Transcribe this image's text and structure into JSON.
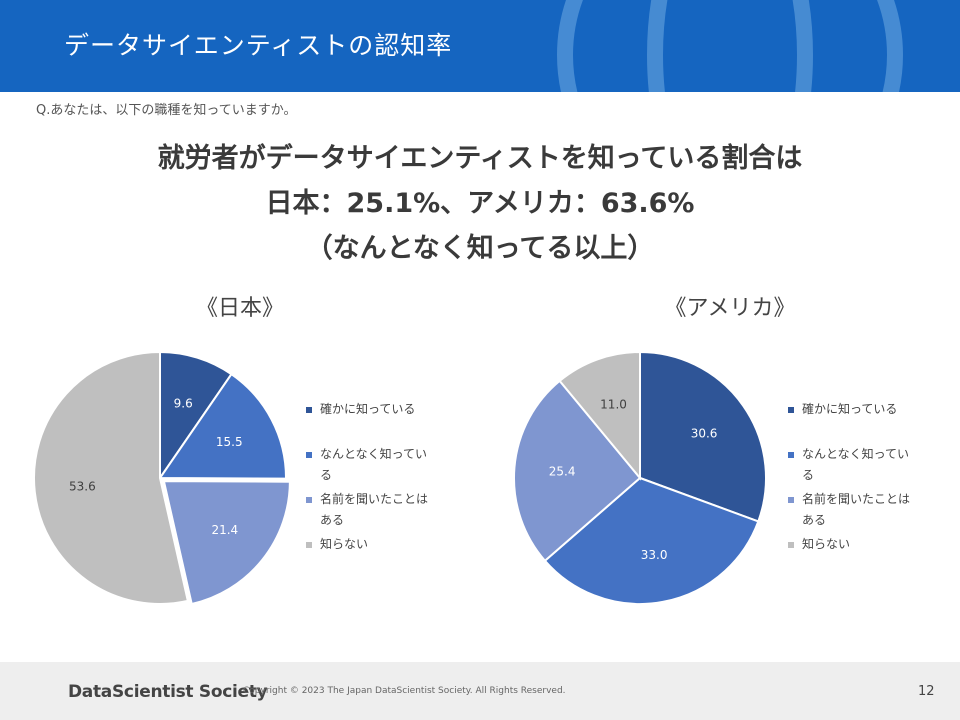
{
  "header": {
    "title": "データサイエンティストの認知率"
  },
  "question": "Q.あなたは、以下の職種を知っていますか。",
  "headline": {
    "line1": "就労者がデータサイエンティストを知っている割合は",
    "line2": "日本：25.1%、アメリカ：63.6%",
    "line3": "（なんとなく知ってる以上）"
  },
  "colors": {
    "header_bg": "#1565c0",
    "slice_1": "#2f5597",
    "slice_2": "#4472c4",
    "slice_3": "#7f96d0",
    "slice_4": "#bfbfbf"
  },
  "chart_data": [
    {
      "type": "pie",
      "title": "《日本》",
      "categories": [
        "確かに知っている",
        "なんとなく知ってい る",
        "名前を聞いたことは ある",
        "知らない"
      ],
      "values": [
        9.6,
        15.5,
        21.4,
        53.6
      ],
      "labels": [
        "9.6",
        "15.5",
        "21.4",
        "53.6"
      ],
      "legend": {
        "position": "right",
        "items": [
          {
            "line1": "確かに知っている"
          },
          {
            "line1": "なんとなく知ってい",
            "line2": "る"
          },
          {
            "line1": "名前を聞いたことは",
            "line2": "ある"
          },
          {
            "line1": "知らない"
          }
        ]
      }
    },
    {
      "type": "pie",
      "title": "《アメリカ》",
      "categories": [
        "確かに知っている",
        "なんとなく知ってい る",
        "名前を聞いたことは ある",
        "知らない"
      ],
      "values": [
        30.6,
        33.0,
        25.4,
        11.0
      ],
      "labels": [
        "30.6",
        "33.0",
        "25.4",
        "11.0"
      ],
      "legend": {
        "position": "right",
        "items": [
          {
            "line1": "確かに知っている"
          },
          {
            "line1": "なんとなく知ってい",
            "line2": "る"
          },
          {
            "line1": "名前を聞いたことは",
            "line2": "ある"
          },
          {
            "line1": "知らない"
          }
        ]
      }
    }
  ],
  "footer": {
    "logo": "DataScientist Society",
    "copyright": "Copyright © 2023 The Japan DataScientist Society. All Rights Reserved.",
    "page": "12"
  }
}
